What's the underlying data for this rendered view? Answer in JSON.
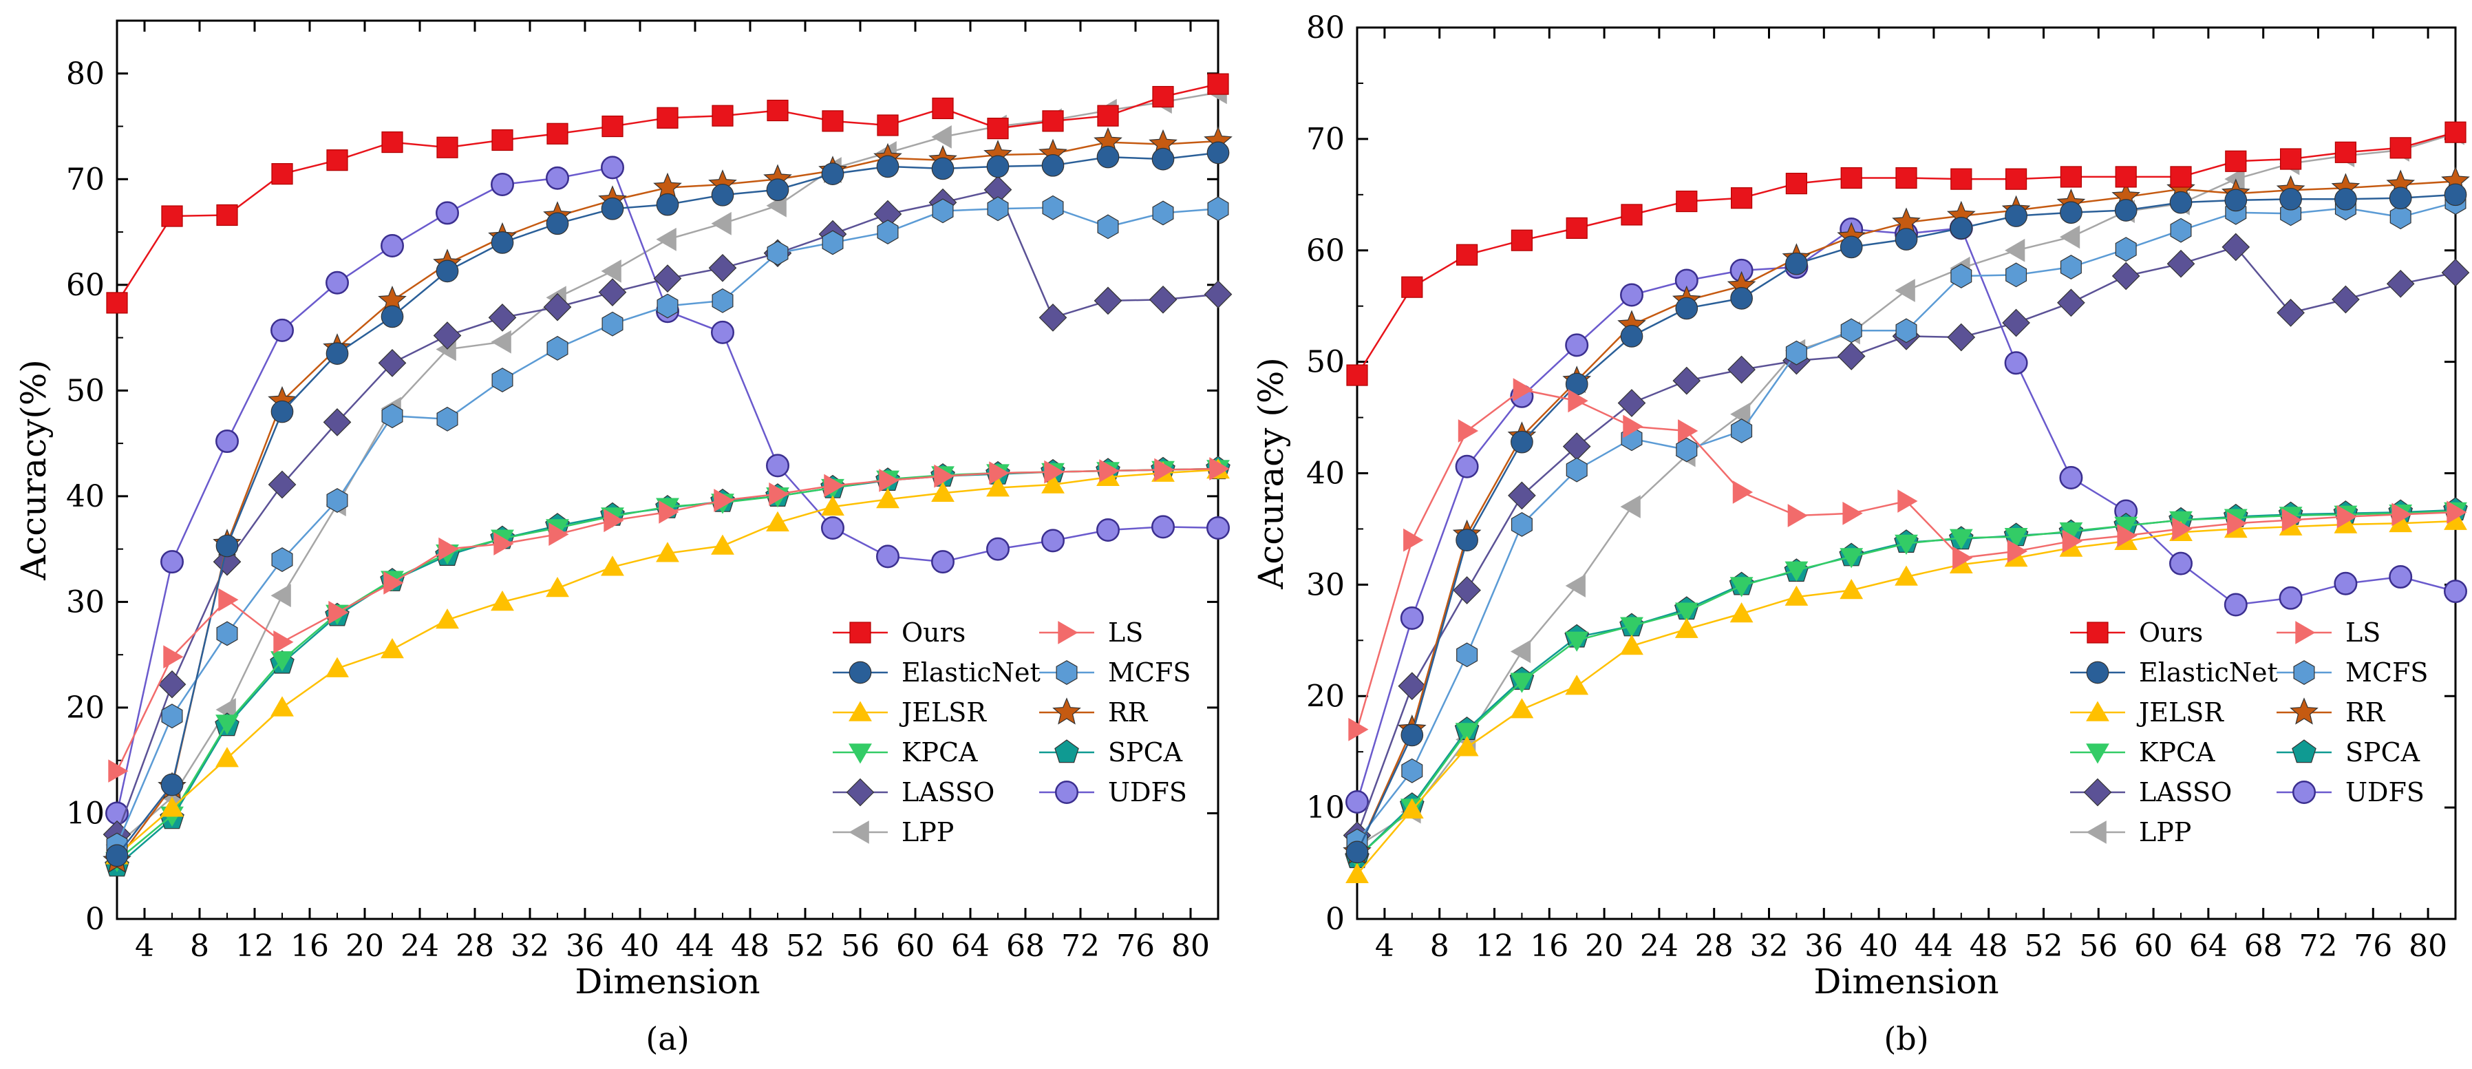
{
  "chart_data": [
    {
      "type": "line",
      "panel_label": "(a)",
      "title": "",
      "xlabel": "Dimension",
      "ylabel": "Accuracy(%)",
      "xlim": [
        2,
        82
      ],
      "ylim": [
        0,
        85
      ],
      "xticks": [
        4,
        8,
        12,
        16,
        20,
        24,
        28,
        32,
        36,
        40,
        44,
        48,
        52,
        56,
        60,
        64,
        68,
        72,
        76,
        80
      ],
      "yticks": [
        0,
        10,
        20,
        30,
        40,
        50,
        60,
        70,
        80
      ],
      "legend_position": "bottom-right",
      "x": [
        2,
        6,
        10,
        14,
        18,
        22,
        26,
        30,
        34,
        38,
        42,
        46,
        50,
        54,
        58,
        62,
        66,
        70,
        74,
        78,
        82
      ],
      "series": [
        {
          "name": "Ours",
          "marker": "square",
          "color": "#e8141b",
          "values": [
            58.3,
            66.5,
            66.6,
            70.5,
            71.8,
            73.5,
            73.0,
            73.7,
            74.3,
            75.0,
            75.8,
            76.0,
            76.5,
            75.5,
            75.1,
            76.7,
            74.8,
            75.5,
            76.0,
            77.8,
            79.0
          ]
        },
        {
          "name": "LS",
          "marker": "triangle-right",
          "color": "#f26b6b",
          "values": [
            14.0,
            24.8,
            30.2,
            26.2,
            29.0,
            31.8,
            35.0,
            35.5,
            36.4,
            37.7,
            38.5,
            39.6,
            40.2,
            41.0,
            41.5,
            41.9,
            42.2,
            42.3,
            42.4,
            42.5,
            42.6
          ]
        },
        {
          "name": "ElasticNet",
          "marker": "circle",
          "color": "#2a5f98",
          "values": [
            6.0,
            12.7,
            35.3,
            48.0,
            53.5,
            57.0,
            61.3,
            64.0,
            65.8,
            67.2,
            67.6,
            68.5,
            69.0,
            70.5,
            71.2,
            71.0,
            71.2,
            71.3,
            72.1,
            71.9,
            72.5
          ]
        },
        {
          "name": "MCFS",
          "marker": "hexagon",
          "color": "#5b9bd5",
          "values": [
            7.0,
            19.2,
            27.0,
            34.0,
            39.6,
            47.6,
            47.3,
            51.0,
            54.0,
            56.3,
            58.0,
            58.5,
            63.0,
            64.0,
            65.0,
            67.0,
            67.2,
            67.3,
            65.5,
            66.8,
            67.2
          ]
        },
        {
          "name": "JELSR",
          "marker": "triangle-up",
          "color": "#ffc000",
          "values": [
            6.0,
            10.5,
            15.2,
            20.0,
            23.7,
            25.5,
            28.3,
            30.0,
            31.3,
            33.3,
            34.6,
            35.3,
            37.5,
            39.0,
            39.7,
            40.3,
            40.8,
            41.1,
            41.8,
            42.2,
            42.5
          ]
        },
        {
          "name": "RR",
          "marker": "star",
          "color": "#c55a11",
          "values": [
            5.5,
            12.5,
            35.5,
            49.0,
            54.0,
            58.5,
            62.0,
            64.5,
            66.5,
            68.0,
            69.2,
            69.5,
            70.0,
            70.8,
            72.0,
            71.8,
            72.3,
            72.4,
            73.5,
            73.3,
            73.6
          ]
        },
        {
          "name": "KPCA",
          "marker": "triangle-down",
          "color": "#33cc66",
          "values": [
            5.5,
            9.8,
            18.5,
            24.5,
            28.9,
            32.1,
            34.6,
            36.0,
            37.0,
            38.1,
            39.0,
            39.4,
            40.0,
            40.8,
            41.6,
            42.0,
            42.2,
            42.3,
            42.4,
            42.5,
            42.6
          ]
        },
        {
          "name": "SPCA",
          "marker": "pentagon",
          "color": "#0f9a92",
          "values": [
            5.0,
            9.5,
            18.3,
            24.2,
            28.7,
            32.0,
            34.4,
            36.0,
            37.2,
            38.2,
            38.9,
            39.5,
            40.0,
            40.8,
            41.5,
            41.9,
            42.1,
            42.3,
            42.4,
            42.5,
            42.6
          ]
        },
        {
          "name": "LASSO",
          "marker": "diamond",
          "color": "#5b5296",
          "values": [
            8.0,
            22.2,
            33.8,
            41.1,
            47.0,
            52.6,
            55.2,
            56.9,
            57.9,
            59.3,
            60.6,
            61.6,
            63.0,
            64.8,
            66.7,
            67.8,
            69.0,
            56.9,
            58.5,
            58.6,
            59.1
          ]
        },
        {
          "name": "UDFS",
          "marker": "circle-open",
          "color": "#6a5acd",
          "values": [
            10.0,
            33.8,
            45.2,
            55.7,
            60.2,
            63.7,
            66.8,
            69.5,
            70.1,
            71.1,
            57.5,
            55.5,
            42.9,
            37.0,
            34.3,
            33.8,
            35.0,
            35.8,
            36.8,
            37.1,
            37.0
          ]
        },
        {
          "name": "LPP",
          "marker": "triangle-left",
          "color": "#a6a6a6",
          "values": [
            7.0,
            11.5,
            19.8,
            30.6,
            39.2,
            48.3,
            53.9,
            54.6,
            58.8,
            61.3,
            64.3,
            65.8,
            67.5,
            71.0,
            72.5,
            74.0,
            75.0,
            75.6,
            76.5,
            77.3,
            78.2
          ]
        }
      ]
    },
    {
      "type": "line",
      "panel_label": "(b)",
      "title": "",
      "xlabel": "Dimension",
      "ylabel": "Accuracy (%)",
      "xlim": [
        2,
        82
      ],
      "ylim": [
        0,
        80
      ],
      "xticks": [
        4,
        8,
        12,
        16,
        20,
        24,
        28,
        32,
        36,
        40,
        44,
        48,
        52,
        56,
        60,
        64,
        68,
        72,
        76,
        80
      ],
      "yticks": [
        0,
        10,
        20,
        30,
        40,
        50,
        60,
        70,
        80
      ],
      "legend_position": "bottom-right",
      "x": [
        2,
        6,
        10,
        14,
        18,
        22,
        26,
        30,
        34,
        38,
        42,
        46,
        50,
        54,
        58,
        62,
        66,
        70,
        74,
        78,
        82
      ],
      "series": [
        {
          "name": "Ours",
          "marker": "square",
          "color": "#e8141b",
          "values": [
            48.8,
            56.7,
            59.6,
            60.9,
            62.0,
            63.2,
            64.4,
            64.7,
            66.0,
            66.5,
            66.5,
            66.4,
            66.4,
            66.6,
            66.6,
            66.6,
            68.0,
            68.2,
            68.8,
            69.2,
            70.6
          ]
        },
        {
          "name": "LS",
          "marker": "triangle-right",
          "color": "#f26b6b",
          "values": [
            17.0,
            34.0,
            43.8,
            47.5,
            46.5,
            44.2,
            43.8,
            38.3,
            36.2,
            36.4,
            37.5,
            32.4,
            33.0,
            33.9,
            34.4,
            35.0,
            35.5,
            35.8,
            36.1,
            36.3,
            36.5
          ]
        },
        {
          "name": "ElasticNet",
          "marker": "circle",
          "color": "#2a5f98",
          "values": [
            6.0,
            16.5,
            34.0,
            42.8,
            48.0,
            52.3,
            54.8,
            55.7,
            58.8,
            60.3,
            61.0,
            62.0,
            63.1,
            63.4,
            63.6,
            64.3,
            64.5,
            64.6,
            64.6,
            64.7,
            65.0
          ]
        },
        {
          "name": "MCFS",
          "marker": "hexagon",
          "color": "#5b9bd5",
          "values": [
            7.0,
            13.3,
            23.7,
            35.4,
            40.3,
            43.1,
            42.1,
            43.8,
            50.8,
            52.8,
            52.8,
            57.7,
            57.8,
            58.5,
            60.1,
            61.8,
            63.4,
            63.3,
            63.8,
            63.0,
            64.3
          ]
        },
        {
          "name": "JELSR",
          "marker": "triangle-up",
          "color": "#ffc000",
          "values": [
            4.0,
            9.8,
            15.4,
            18.8,
            20.9,
            24.5,
            26.0,
            27.4,
            28.9,
            29.5,
            30.7,
            31.8,
            32.4,
            33.3,
            33.9,
            34.7,
            35.0,
            35.2,
            35.4,
            35.5,
            35.7
          ]
        },
        {
          "name": "RR",
          "marker": "star",
          "color": "#c55a11",
          "values": [
            6.0,
            17.0,
            34.5,
            43.3,
            48.3,
            53.3,
            55.5,
            56.8,
            59.3,
            61.2,
            62.5,
            63.1,
            63.6,
            64.2,
            64.8,
            65.5,
            65.1,
            65.4,
            65.6,
            65.9,
            66.2
          ]
        },
        {
          "name": "KPCA",
          "marker": "triangle-down",
          "color": "#33cc66",
          "values": [
            5.5,
            10.0,
            16.8,
            21.3,
            25.0,
            26.3,
            27.6,
            29.9,
            31.3,
            32.5,
            33.7,
            34.2,
            34.3,
            34.8,
            35.3,
            35.8,
            36.0,
            36.2,
            36.3,
            36.4,
            36.6
          ]
        },
        {
          "name": "SPCA",
          "marker": "pentagon",
          "color": "#0f9a92",
          "values": [
            5.5,
            10.2,
            17.0,
            21.5,
            25.3,
            26.3,
            27.8,
            30.0,
            31.2,
            32.6,
            33.8,
            34.1,
            34.4,
            34.7,
            35.3,
            35.8,
            36.1,
            36.3,
            36.4,
            36.5,
            36.7
          ]
        },
        {
          "name": "LASSO",
          "marker": "diamond",
          "color": "#5b5296",
          "values": [
            7.5,
            20.9,
            29.5,
            38.0,
            42.4,
            46.3,
            48.3,
            49.3,
            50.1,
            50.5,
            52.3,
            52.2,
            53.5,
            55.3,
            57.7,
            58.8,
            60.3,
            54.4,
            55.6,
            57.0,
            58.0
          ]
        },
        {
          "name": "UDFS",
          "marker": "circle-open",
          "color": "#6a5acd",
          "values": [
            10.5,
            27.0,
            40.6,
            46.9,
            51.5,
            56.0,
            57.3,
            58.2,
            58.5,
            61.9,
            61.5,
            62.0,
            49.9,
            39.6,
            36.6,
            31.9,
            28.2,
            28.8,
            30.1,
            30.7,
            29.4
          ]
        },
        {
          "name": "LPP",
          "marker": "triangle-left",
          "color": "#a6a6a6",
          "values": [
            6.5,
            9.6,
            16.1,
            24.0,
            29.9,
            37.0,
            41.6,
            45.3,
            51.0,
            52.6,
            56.4,
            58.4,
            60.0,
            61.2,
            63.5,
            64.2,
            66.4,
            67.8,
            68.5,
            69.0,
            70.5
          ]
        }
      ]
    }
  ]
}
